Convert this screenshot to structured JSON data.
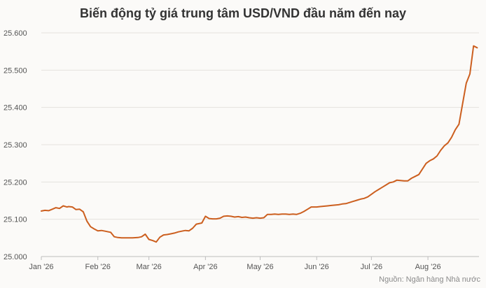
{
  "chart_data": {
    "type": "line",
    "title": "Biến động tỷ giá trung tâm USD/VND đầu năm đến nay",
    "source": "Nguồn: Ngân hàng Nhà nước",
    "ylim": [
      25000,
      25600
    ],
    "yticks": [
      25000,
      25100,
      25200,
      25300,
      25400,
      25500,
      25600
    ],
    "ytick_labels": [
      "25.000",
      "25.100",
      "25.200",
      "25.300",
      "25.400",
      "25.500",
      "25.600"
    ],
    "xlim": [
      "2026-01-01",
      "2026-08-29"
    ],
    "xticks": [
      "2026-01-01",
      "2026-02-01",
      "2026-03-01",
      "2026-04-01",
      "2026-05-01",
      "2026-06-01",
      "2026-07-01",
      "2026-08-01"
    ],
    "xtick_labels": [
      "Jan '26",
      "Feb '26",
      "Mar '26",
      "Apr '26",
      "May '26",
      "Jun '26",
      "Jul '26",
      "Aug '26"
    ],
    "grid": true,
    "color": "#cc5f1f",
    "series": [
      {
        "x": [
          "2026-01-01",
          "2026-01-03",
          "2026-01-05",
          "2026-01-07",
          "2026-01-09",
          "2026-01-11",
          "2026-01-13",
          "2026-01-15",
          "2026-01-16",
          "2026-01-18",
          "2026-01-20",
          "2026-01-22",
          "2026-01-24",
          "2026-01-26",
          "2026-01-28",
          "2026-01-30",
          "2026-02-01",
          "2026-02-03",
          "2026-02-05",
          "2026-02-07",
          "2026-02-08",
          "2026-02-10",
          "2026-02-12",
          "2026-02-14",
          "2026-02-16",
          "2026-02-18",
          "2026-02-20",
          "2026-02-23",
          "2026-02-25",
          "2026-02-27",
          "2026-03-01",
          "2026-03-03",
          "2026-03-05",
          "2026-03-07",
          "2026-03-09",
          "2026-03-11",
          "2026-03-13",
          "2026-03-15",
          "2026-03-17",
          "2026-03-19",
          "2026-03-21",
          "2026-03-23",
          "2026-03-25",
          "2026-03-27",
          "2026-03-28",
          "2026-03-30",
          "2026-04-01",
          "2026-04-03",
          "2026-04-05",
          "2026-04-07",
          "2026-04-09",
          "2026-04-11",
          "2026-04-13",
          "2026-04-15",
          "2026-04-17",
          "2026-04-19",
          "2026-04-21",
          "2026-04-23",
          "2026-04-25",
          "2026-04-27",
          "2026-04-29",
          "2026-05-01",
          "2026-05-03",
          "2026-05-05",
          "2026-05-07",
          "2026-05-09",
          "2026-05-11",
          "2026-05-13",
          "2026-05-15",
          "2026-05-17",
          "2026-05-19",
          "2026-05-21",
          "2026-05-23",
          "2026-05-25",
          "2026-05-27",
          "2026-05-29",
          "2026-06-01",
          "2026-06-03",
          "2026-06-05",
          "2026-06-07",
          "2026-06-09",
          "2026-06-11",
          "2026-06-13",
          "2026-06-15",
          "2026-06-17",
          "2026-06-19",
          "2026-06-21",
          "2026-06-23",
          "2026-06-25",
          "2026-06-27",
          "2026-06-29",
          "2026-07-01",
          "2026-07-03",
          "2026-07-05",
          "2026-07-07",
          "2026-07-09",
          "2026-07-11",
          "2026-07-13",
          "2026-07-15",
          "2026-07-17",
          "2026-07-19",
          "2026-07-21",
          "2026-07-23",
          "2026-07-25",
          "2026-07-27",
          "2026-07-29",
          "2026-07-31",
          "2026-08-02",
          "2026-08-04",
          "2026-08-06",
          "2026-08-08",
          "2026-08-10",
          "2026-08-12",
          "2026-08-14",
          "2026-08-16",
          "2026-08-18",
          "2026-08-20",
          "2026-08-22",
          "2026-08-24",
          "2026-08-26",
          "2026-08-28"
        ],
        "values": [
          25122,
          25124,
          25123,
          25127,
          25131,
          25129,
          25136,
          25133,
          25134,
          25133,
          25126,
          25127,
          25120,
          25095,
          25080,
          25074,
          25069,
          25070,
          25068,
          25066,
          25065,
          25053,
          25051,
          25050,
          25050,
          25050,
          25050,
          25051,
          25053,
          25060,
          25046,
          25043,
          25039,
          25052,
          25058,
          25059,
          25061,
          25063,
          25066,
          25068,
          25070,
          25069,
          25076,
          25087,
          25088,
          25090,
          25108,
          25102,
          25101,
          25101,
          25103,
          25108,
          25109,
          25108,
          25106,
          25107,
          25105,
          25106,
          25104,
          25103,
          25104,
          25103,
          25104,
          25113,
          25113,
          25114,
          25113,
          25114,
          25114,
          25113,
          25114,
          25113,
          25116,
          25121,
          25127,
          25133,
          25133,
          25134,
          25135,
          25136,
          25137,
          25138,
          25139,
          25141,
          25142,
          25145,
          25148,
          25151,
          25154,
          25156,
          25160,
          25167,
          25174,
          25180,
          25186,
          25192,
          25198,
          25200,
          25205,
          25204,
          25203,
          25203,
          25210,
          25215,
          25220,
          25235,
          25250,
          25257,
          25262,
          25270,
          25285,
          25297,
          25305,
          25320,
          25340,
          25355,
          25410,
          25465,
          25490,
          25565,
          25560
        ]
      }
    ]
  }
}
